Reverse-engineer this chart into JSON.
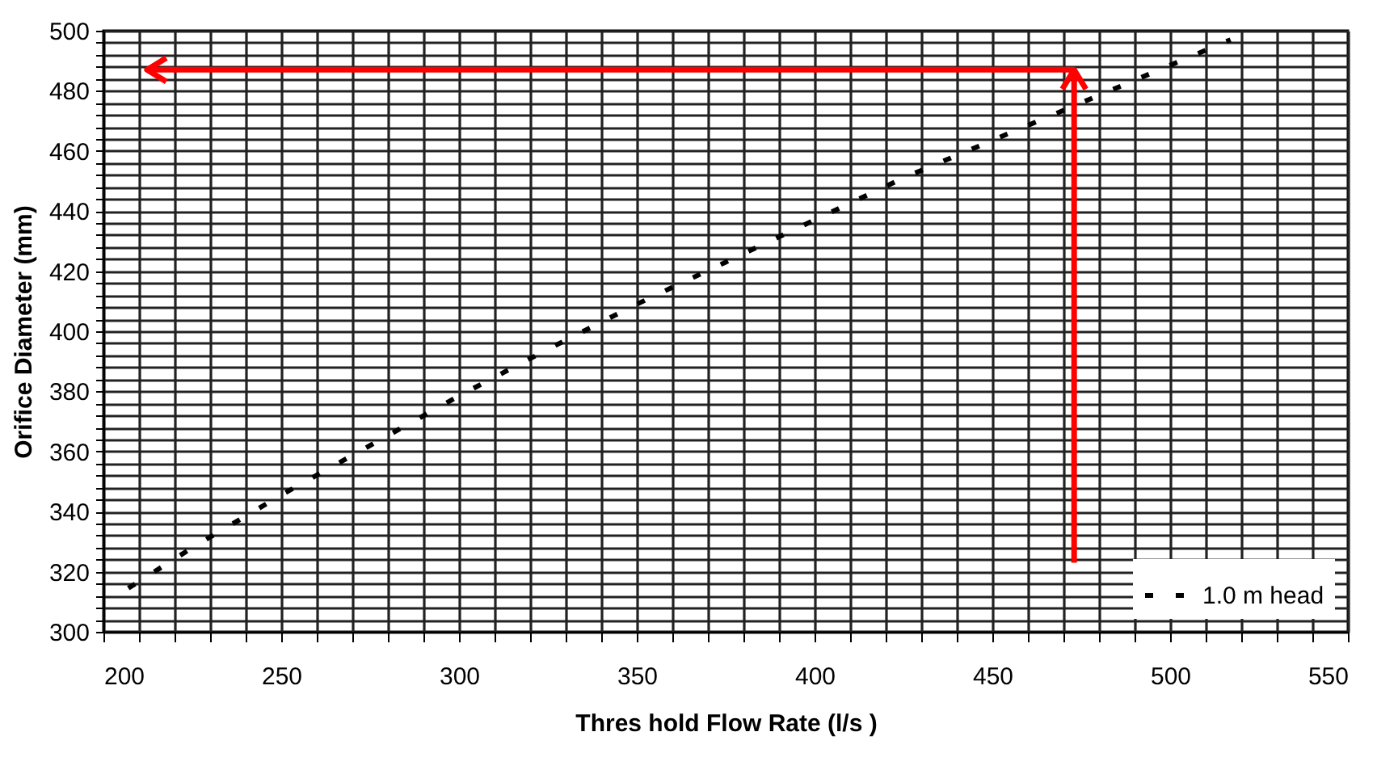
{
  "chart_data": {
    "type": "line",
    "xlabel": "Thres hold Flow Rate (l/s )",
    "ylabel": "Orifice Diameter (mm)",
    "x": [
      207,
      225,
      250,
      275,
      300,
      325,
      350,
      375,
      400,
      425,
      450,
      475,
      500,
      517
    ],
    "series": [
      {
        "name": "1.0 m head",
        "color": "#000000",
        "values": [
          314.5,
          328,
          345.5,
          362,
          378.5,
          394,
          409,
          423,
          437,
          451,
          463.5,
          476,
          488.5,
          497
        ]
      }
    ],
    "xlim": [
      200,
      550
    ],
    "ylim": [
      300,
      500
    ],
    "xticks": [
      200,
      {
        "value": 210,
        "label": null
      },
      {
        "value": 220,
        "label": null
      },
      {
        "value": 230,
        "label": null
      },
      {
        "value": 240,
        "label": null
      },
      250,
      {
        "value": 260,
        "label": null
      },
      {
        "value": 270,
        "label": null
      },
      {
        "value": 280,
        "label": null
      },
      {
        "value": 290,
        "label": null
      },
      300,
      {
        "value": 310,
        "label": null
      },
      {
        "value": 320,
        "label": null
      },
      {
        "value": 330,
        "label": null
      },
      {
        "value": 340,
        "label": null
      },
      350,
      {
        "value": 360,
        "label": null
      },
      {
        "value": 370,
        "label": null
      },
      {
        "value": 380,
        "label": null
      },
      {
        "value": 390,
        "label": null
      },
      400,
      {
        "value": 410,
        "label": null
      },
      {
        "value": 420,
        "label": null
      },
      {
        "value": 430,
        "label": null
      },
      {
        "value": 440,
        "label": null
      },
      450,
      {
        "value": 460,
        "label": null
      },
      {
        "value": 470,
        "label": null
      },
      {
        "value": 480,
        "label": null
      },
      {
        "value": 490,
        "label": null
      },
      500,
      {
        "value": 510,
        "label": null
      },
      {
        "value": 520,
        "label": null
      },
      {
        "value": 530,
        "label": null
      },
      {
        "value": 540,
        "label": null
      },
      550
    ],
    "yticks": [
      300,
      {
        "value": 304,
        "label": null
      },
      {
        "value": 308,
        "label": null
      },
      {
        "value": 312,
        "label": null
      },
      {
        "value": 316,
        "label": null
      },
      320,
      {
        "value": 324,
        "label": null
      },
      {
        "value": 328,
        "label": null
      },
      {
        "value": 332,
        "label": null
      },
      {
        "value": 336,
        "label": null
      },
      340,
      {
        "value": 344,
        "label": null
      },
      {
        "value": 348,
        "label": null
      },
      {
        "value": 352,
        "label": null
      },
      {
        "value": 356,
        "label": null
      },
      360,
      {
        "value": 364,
        "label": null
      },
      {
        "value": 368,
        "label": null
      },
      {
        "value": 372,
        "label": null
      },
      {
        "value": 376,
        "label": null
      },
      380,
      {
        "value": 384,
        "label": null
      },
      {
        "value": 388,
        "label": null
      },
      {
        "value": 392,
        "label": null
      },
      {
        "value": 396,
        "label": null
      },
      400,
      {
        "value": 404,
        "label": null
      },
      {
        "value": 408,
        "label": null
      },
      {
        "value": 412,
        "label": null
      },
      {
        "value": 416,
        "label": null
      },
      420,
      {
        "value": 424,
        "label": null
      },
      {
        "value": 428,
        "label": null
      },
      {
        "value": 432,
        "label": null
      },
      {
        "value": 436,
        "label": null
      },
      440,
      {
        "value": 444,
        "label": null
      },
      {
        "value": 448,
        "label": null
      },
      {
        "value": 452,
        "label": null
      },
      {
        "value": 456,
        "label": null
      },
      460,
      {
        "value": 464,
        "label": null
      },
      {
        "value": 468,
        "label": null
      },
      {
        "value": 472,
        "label": null
      },
      {
        "value": 476,
        "label": null
      },
      480,
      {
        "value": 484,
        "label": null
      },
      {
        "value": 488,
        "label": null
      },
      {
        "value": 492,
        "label": null
      },
      {
        "value": 496,
        "label": null
      },
      500
    ],
    "ref_lines": [
      {
        "axis": "x",
        "value": 473,
        "color": "#ff0000"
      },
      {
        "axis": "y",
        "value": 487,
        "color": "#ff0000"
      }
    ],
    "grid": true,
    "legend": "bottom right",
    "marker": "none",
    "line_style": "dashed"
  }
}
